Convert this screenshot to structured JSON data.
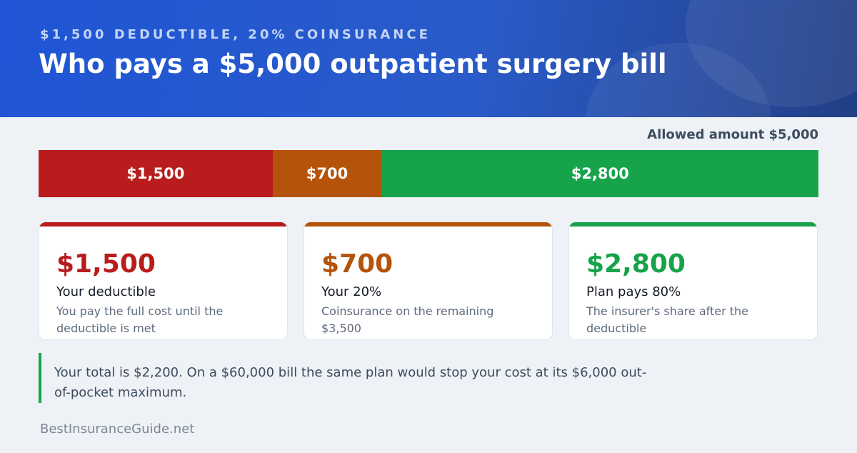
{
  "header": {
    "kicker": "$1,500 DEDUCTIBLE, 20% COINSURANCE",
    "title": "Who pays a $5,000 outpatient surgery bill"
  },
  "allowed_amount_label": "Allowed amount $5,000",
  "bar": {
    "total": 5000,
    "segments": [
      {
        "label": "$1,500",
        "value": 1500,
        "color": "#b91c1c"
      },
      {
        "label": "$700",
        "value": 700,
        "color": "#b45309"
      },
      {
        "label": "$2,800",
        "value": 2800,
        "color": "#16a34a"
      }
    ]
  },
  "cards": [
    {
      "amount": "$1,500",
      "label": "Your deductible",
      "description": "You pay the full cost until the deductible is met",
      "color": "#b91c1c"
    },
    {
      "amount": "$700",
      "label": "Your 20%",
      "description": "Coinsurance on the remaining $3,500",
      "color": "#b45309"
    },
    {
      "amount": "$2,800",
      "label": "Plan pays 80%",
      "description": "The insurer's share after the deductible",
      "color": "#16a34a"
    }
  ],
  "note": "Your total is $2,200. On a $60,000 bill the same plan would stop your cost at its $6,000 out-of-pocket maximum.",
  "footer": "BestInsuranceGuide.net"
}
